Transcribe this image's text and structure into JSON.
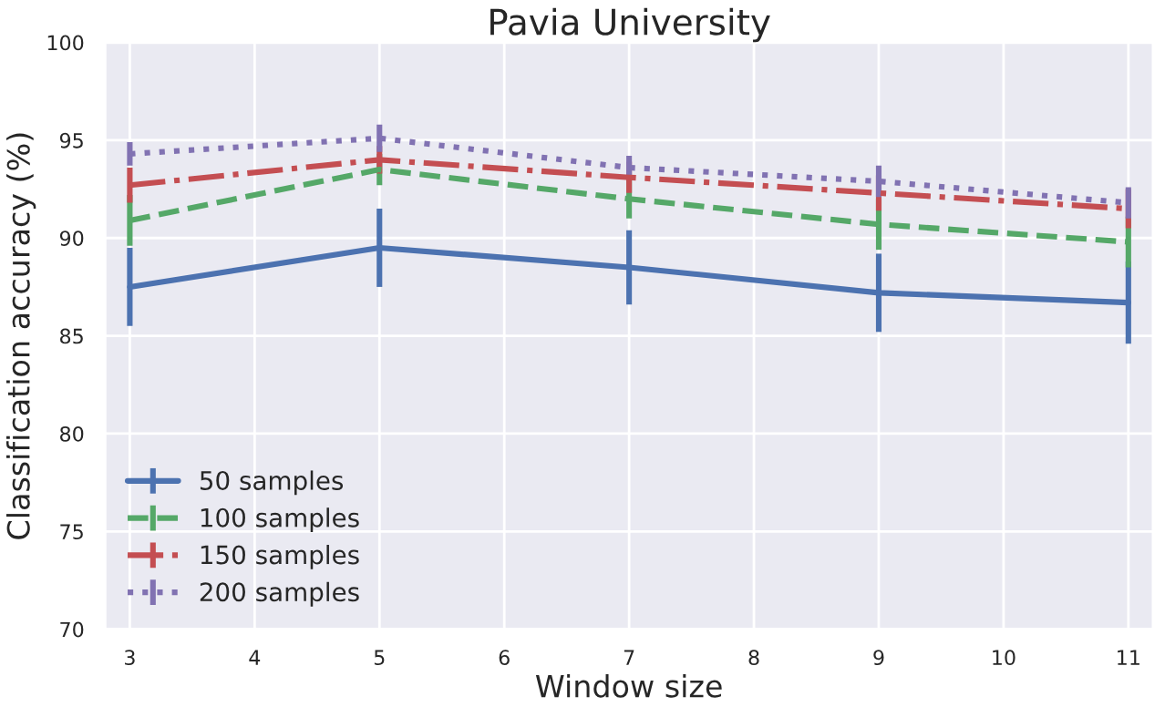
{
  "chart_data": {
    "type": "line",
    "title": "Pavia University",
    "xlabel": "Window size",
    "ylabel": "Classification accuracy (%)",
    "x": [
      3,
      5,
      7,
      9,
      11
    ],
    "series": [
      {
        "name": "50 samples",
        "color": "#4c72b0",
        "line_style": "solid",
        "values": [
          87.5,
          89.5,
          88.5,
          87.2,
          86.7
        ],
        "errors": [
          2,
          2,
          1.9,
          2,
          2.1
        ]
      },
      {
        "name": "100 samples",
        "color": "#55a868",
        "line_style": "dashed",
        "values": [
          90.9,
          93.5,
          92.0,
          90.7,
          89.8
        ],
        "errors": [
          1.3,
          0.8,
          1.0,
          1.3,
          1.3
        ]
      },
      {
        "name": "150 samples",
        "color": "#c44e52",
        "line_style": "dashdot",
        "values": [
          92.7,
          94.0,
          93.1,
          92.3,
          91.5
        ],
        "errors": [
          0.9,
          0.7,
          0.8,
          0.9,
          1.0
        ]
      },
      {
        "name": "200 samples",
        "color": "#8172b2",
        "line_style": "dotted",
        "values": [
          94.3,
          95.1,
          93.6,
          92.9,
          91.8
        ],
        "errors": [
          0.6,
          0.7,
          0.6,
          0.8,
          0.8
        ]
      }
    ],
    "xlim": [
      2.8,
      11.2
    ],
    "xticks": [
      3,
      4,
      5,
      6,
      7,
      8,
      9,
      10,
      11
    ],
    "ylim": [
      70,
      100
    ],
    "yticks": [
      70,
      75,
      80,
      85,
      90,
      95,
      100
    ],
    "grid": true,
    "legend": "bottom left"
  }
}
